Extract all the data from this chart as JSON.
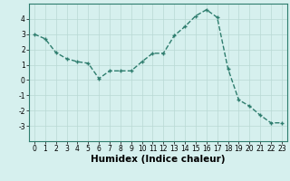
{
  "title": "",
  "xlabel": "Humidex (Indice chaleur)",
  "ylabel": "",
  "x": [
    0,
    1,
    2,
    3,
    4,
    5,
    6,
    7,
    8,
    9,
    10,
    11,
    12,
    13,
    14,
    15,
    16,
    17,
    18,
    19,
    20,
    21,
    22,
    23
  ],
  "y": [
    3.0,
    2.7,
    1.8,
    1.4,
    1.2,
    1.1,
    0.1,
    0.6,
    0.6,
    0.6,
    1.2,
    1.75,
    1.75,
    2.9,
    3.5,
    4.2,
    4.6,
    4.1,
    0.75,
    -1.3,
    -1.7,
    -2.3,
    -2.8,
    -2.8
  ],
  "line_color": "#2e7d6e",
  "marker": "+",
  "marker_size": 3.5,
  "marker_edge_width": 1.0,
  "background_color": "#d6f0ee",
  "grid_color": "#b8d8d4",
  "ylim": [
    -4,
    5
  ],
  "yticks": [
    -3,
    -2,
    -1,
    0,
    1,
    2,
    3,
    4
  ],
  "xlim": [
    -0.5,
    23.5
  ],
  "xticks": [
    0,
    1,
    2,
    3,
    4,
    5,
    6,
    7,
    8,
    9,
    10,
    11,
    12,
    13,
    14,
    15,
    16,
    17,
    18,
    19,
    20,
    21,
    22,
    23
  ],
  "tick_label_fontsize": 5.5,
  "xlabel_fontsize": 7.5,
  "line_width": 1.0,
  "spine_color": "#2e7d6e"
}
